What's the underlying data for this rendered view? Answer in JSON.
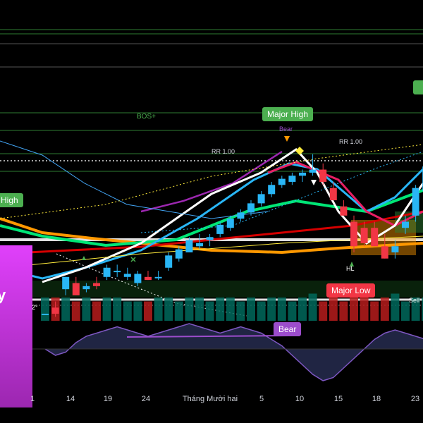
{
  "colors": {
    "background": "#000000",
    "bull": "#29b6f6",
    "bear": "#f23645",
    "structure_green": "#4caf50",
    "bear_signal": "#9c4dcc",
    "badge_magenta": "#e040fb"
  },
  "labels": {
    "bos": "BOS+",
    "major_high": "Major High",
    "bear_top": "Bear",
    "rr_left": "RR 1.00",
    "rr_right": "RR 1.00",
    "left_high": "High",
    "hl": "HL",
    "major_low": "Major Low",
    "bear_osc": "Bear",
    "sell": "Sell",
    "left_value": "2°",
    "badge": "y"
  },
  "x_axis": {
    "ticks": [
      "1",
      "14",
      "19",
      "24",
      "Tháng Mười hai",
      "5",
      "10",
      "15",
      "18",
      "23"
    ]
  },
  "icons": [
    "up-triangle-icon",
    "down-triangle-icon",
    "cross-marker-icon",
    "diamond-marker-icon"
  ],
  "chart_data": {
    "type": "candlestick",
    "candles": [
      [
        40,
        40,
        40,
        40
      ],
      [
        42,
        44,
        39,
        40
      ],
      [
        48,
        52,
        46,
        52
      ],
      [
        50,
        52,
        46,
        46
      ],
      [
        48,
        50,
        47,
        49
      ],
      [
        50,
        52,
        48,
        49
      ],
      [
        52,
        56,
        51,
        55
      ],
      [
        54,
        56,
        52,
        54
      ],
      [
        52,
        55,
        51,
        53
      ],
      [
        50,
        54,
        49,
        53
      ],
      [
        52,
        54,
        51,
        51
      ],
      [
        52,
        54,
        51,
        52
      ],
      [
        55,
        60,
        54,
        59
      ],
      [
        58,
        62,
        57,
        61
      ],
      [
        60,
        65,
        60,
        64
      ],
      [
        62,
        66,
        61,
        63
      ],
      [
        64,
        66,
        62,
        65
      ],
      [
        66,
        70,
        65,
        69
      ],
      [
        68,
        72,
        67,
        71
      ],
      [
        71,
        74,
        70,
        73
      ],
      [
        73,
        77,
        72,
        76
      ],
      [
        76,
        80,
        75,
        79
      ],
      [
        79,
        83,
        78,
        82
      ],
      [
        82,
        85,
        81,
        84
      ],
      [
        83,
        86,
        82,
        85
      ],
      [
        85,
        87,
        83,
        86
      ],
      [
        86,
        92,
        85,
        87
      ],
      [
        87,
        89,
        82,
        83
      ],
      [
        81,
        83,
        77,
        77
      ],
      [
        75,
        77,
        72,
        72
      ],
      [
        70,
        72,
        60,
        62
      ],
      [
        68,
        70,
        62,
        63
      ],
      [
        68,
        70,
        62,
        62
      ],
      [
        62,
        66,
        58,
        58
      ],
      [
        60,
        64,
        58,
        62
      ],
      [
        68,
        72,
        66,
        70
      ],
      [
        72,
        82,
        70,
        81
      ],
      [
        80,
        88,
        79,
        88
      ]
    ],
    "volume": [
      6,
      6,
      6,
      5,
      6,
      5,
      6,
      6,
      5,
      5,
      5,
      6,
      6,
      5,
      6,
      6,
      5,
      6,
      6,
      5,
      6,
      5,
      6,
      6,
      5,
      6,
      7,
      5,
      6,
      5,
      6,
      7,
      5,
      6,
      7,
      5,
      6,
      6
    ],
    "oscillator": [
      0,
      -2,
      -1,
      2,
      4,
      5,
      6,
      7,
      6,
      5,
      4,
      5,
      6,
      7,
      8,
      7,
      6,
      5,
      6,
      7,
      6,
      5,
      3,
      1,
      -2,
      -5,
      -8,
      -10,
      -9,
      -6,
      -3,
      0,
      3,
      5,
      6,
      5,
      4,
      3
    ],
    "grid": false
  }
}
